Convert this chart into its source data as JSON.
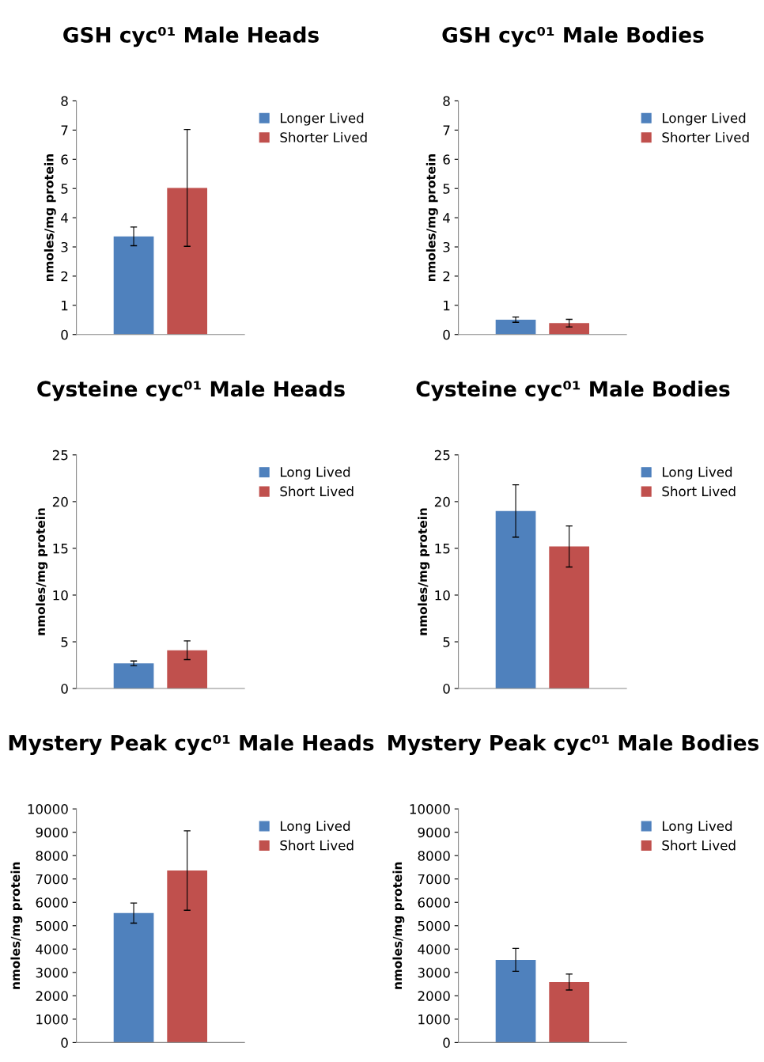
{
  "chart_data": [
    {
      "type": "bar",
      "title": "GSH cyc⁰¹ Male Heads",
      "ylabel": "nmoles/mg protein",
      "categories": [
        null
      ],
      "ylim": [
        0,
        8
      ],
      "yticks": [
        0,
        1,
        2,
        3,
        4,
        5,
        6,
        7,
        8
      ],
      "tick_labels": "y",
      "legend": "right",
      "series": [
        {
          "name": "Longer Lived",
          "color": "#4f81bd",
          "values": [
            3.36
          ],
          "errors": [
            0.32
          ]
        },
        {
          "name": "Shorter Lived",
          "color": "#c0504d",
          "values": [
            5.02
          ],
          "errors": [
            2.0
          ]
        }
      ]
    },
    {
      "type": "bar",
      "title": "GSH cyc⁰¹ Male Bodies",
      "ylabel": "nmoles/mg protein",
      "categories": [
        null
      ],
      "ylim": [
        0,
        8
      ],
      "yticks": [
        0,
        1,
        2,
        3,
        4,
        5,
        6,
        7,
        8
      ],
      "tick_labels": "y",
      "legend": "right",
      "series": [
        {
          "name": "Longer Lived",
          "color": "#4f81bd",
          "values": [
            0.51
          ],
          "errors": [
            0.09
          ]
        },
        {
          "name": "Shorter Lived",
          "color": "#c0504d",
          "values": [
            0.39
          ],
          "errors": [
            0.13
          ]
        }
      ]
    },
    {
      "type": "bar",
      "title": "Cysteine cyc⁰¹ Male Heads",
      "ylabel": "nmoles/mg protein",
      "categories": [
        null
      ],
      "ylim": [
        0,
        25
      ],
      "yticks": [
        0,
        5,
        10,
        15,
        20,
        25
      ],
      "tick_labels": "y",
      "legend": "right",
      "series": [
        {
          "name": "Long Lived",
          "color": "#4f81bd",
          "values": [
            2.7
          ],
          "errors": [
            0.25
          ]
        },
        {
          "name": "Short Lived",
          "color": "#c0504d",
          "values": [
            4.1
          ],
          "errors": [
            1.0
          ]
        }
      ]
    },
    {
      "type": "bar",
      "title": "Cysteine cyc⁰¹ Male Bodies",
      "ylabel": "nmoles/mg protein",
      "categories": [
        null
      ],
      "ylim": [
        0,
        25
      ],
      "yticks": [
        0,
        5,
        10,
        15,
        20,
        25
      ],
      "tick_labels": "y",
      "legend": "right",
      "series": [
        {
          "name": "Long Lived",
          "color": "#4f81bd",
          "values": [
            19.0
          ],
          "errors": [
            2.8
          ]
        },
        {
          "name": "Short Lived",
          "color": "#c0504d",
          "values": [
            15.2
          ],
          "errors": [
            2.2
          ]
        }
      ]
    },
    {
      "type": "bar",
      "title": "Mystery Peak cyc⁰¹ Male Heads",
      "ylabel": "nmoles/mg protein",
      "categories": [
        null
      ],
      "ylim": [
        0,
        10000
      ],
      "yticks": [
        0,
        1000,
        2000,
        3000,
        4000,
        5000,
        6000,
        7000,
        8000,
        9000,
        10000
      ],
      "tick_labels": "y",
      "legend": "right",
      "series": [
        {
          "name": "Long Lived",
          "color": "#4f81bd",
          "values": [
            5540
          ],
          "errors": [
            430
          ]
        },
        {
          "name": "Short Lived",
          "color": "#c0504d",
          "values": [
            7360
          ],
          "errors": [
            1700
          ]
        }
      ]
    },
    {
      "type": "bar",
      "title": "Mystery Peak cyc⁰¹ Male Bodies",
      "ylabel": "nmoles/mg protein",
      "categories": [
        null
      ],
      "ylim": [
        0,
        10000
      ],
      "yticks": [
        0,
        1000,
        2000,
        3000,
        4000,
        5000,
        6000,
        7000,
        8000,
        9000,
        10000
      ],
      "tick_labels": "y",
      "legend": "right",
      "series": [
        {
          "name": "Long Lived",
          "color": "#4f81bd",
          "values": [
            3540
          ],
          "errors": [
            490
          ]
        },
        {
          "name": "Short Lived",
          "color": "#c0504d",
          "values": [
            2590
          ],
          "errors": [
            340
          ]
        }
      ]
    }
  ]
}
